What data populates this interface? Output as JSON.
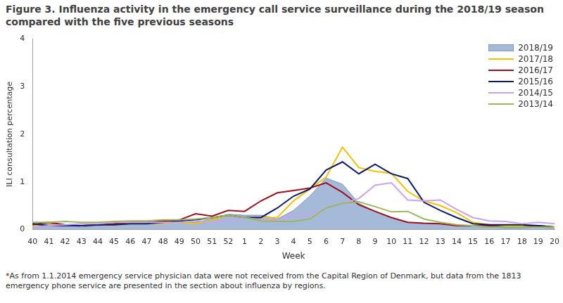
{
  "chart_data": {
    "type": "line",
    "title": "Figure 3. Influenza activity in the emergency call service surveillance during the 2018/19 season compared with the five previous seasons",
    "x_label": "Week",
    "y_label": "ILI consultation percentage",
    "annotations": [
      "*As from 1.1.2014 emergency service physician data were not received from the Capital Region of Denmark, but data from the 1813 emergency phone service are presented in the section about influenza by regions."
    ],
    "categories": [
      "40",
      "41",
      "42",
      "43",
      "44",
      "45",
      "46",
      "47",
      "48",
      "49",
      "50",
      "51",
      "52",
      "1",
      "2",
      "3",
      "4",
      "5",
      "6",
      "7",
      "8",
      "9",
      "10",
      "11",
      "12",
      "13",
      "14",
      "15",
      "16",
      "17",
      "18",
      "19",
      "20"
    ],
    "series": [
      {
        "name": "2018/19",
        "type": "area",
        "color": "#a5b9d9",
        "values": [
          0.15,
          0.12,
          0.1,
          0.05,
          0.08,
          0.1,
          0.12,
          0.13,
          0.15,
          0.15,
          0.15,
          0.22,
          0.32,
          0.3,
          0.3,
          0.22,
          0.4,
          0.7,
          1.08,
          0.95,
          0.55,
          0.38,
          0.25,
          0.15,
          0.12,
          0.12,
          0.08,
          0.05,
          0.05,
          0.03,
          0.03,
          0.05,
          0.02
        ]
      },
      {
        "name": "2017/18",
        "type": "line",
        "color": "#f5c200",
        "values": [
          0.08,
          0.1,
          0.08,
          0.08,
          0.1,
          0.1,
          0.12,
          0.12,
          0.13,
          0.15,
          0.12,
          0.2,
          0.3,
          0.25,
          0.25,
          0.25,
          0.6,
          0.85,
          1.1,
          1.73,
          1.3,
          1.22,
          1.18,
          0.8,
          0.6,
          0.5,
          0.35,
          0.15,
          0.1,
          0.08,
          0.08,
          0.08,
          0.05
        ]
      },
      {
        "name": "2016/17",
        "type": "line",
        "color": "#a00f1e",
        "values": [
          0.1,
          0.15,
          0.1,
          0.08,
          0.1,
          0.12,
          0.15,
          0.15,
          0.18,
          0.2,
          0.33,
          0.28,
          0.4,
          0.38,
          0.6,
          0.77,
          0.82,
          0.87,
          0.98,
          0.78,
          0.52,
          0.38,
          0.25,
          0.15,
          0.13,
          0.12,
          0.08,
          0.08,
          0.08,
          0.05,
          0.05,
          0.08,
          0.05
        ]
      },
      {
        "name": "2015/16",
        "type": "line",
        "color": "#0a1a6e",
        "values": [
          0.12,
          0.08,
          0.08,
          0.08,
          0.1,
          0.1,
          0.12,
          0.12,
          0.15,
          0.18,
          0.2,
          0.25,
          0.3,
          0.25,
          0.25,
          0.45,
          0.7,
          0.85,
          1.25,
          1.42,
          1.17,
          1.37,
          1.17,
          1.07,
          0.57,
          0.4,
          0.25,
          0.12,
          0.1,
          0.1,
          0.1,
          0.08,
          0.05
        ]
      },
      {
        "name": "2014/15",
        "type": "line",
        "color": "#c9a2f0",
        "values": [
          0.05,
          0.08,
          0.1,
          0.12,
          0.12,
          0.15,
          0.15,
          0.15,
          0.15,
          0.15,
          0.18,
          0.15,
          0.18,
          0.25,
          0.2,
          0.2,
          0.3,
          0.3,
          0.45,
          0.55,
          0.65,
          0.93,
          0.98,
          0.62,
          0.6,
          0.62,
          0.42,
          0.25,
          0.18,
          0.17,
          0.12,
          0.15,
          0.12
        ]
      },
      {
        "name": "2013/14",
        "type": "line",
        "color": "#9aba59",
        "values": [
          0.15,
          0.15,
          0.17,
          0.15,
          0.15,
          0.17,
          0.18,
          0.18,
          0.2,
          0.2,
          0.22,
          0.25,
          0.3,
          0.25,
          0.18,
          0.17,
          0.17,
          0.22,
          0.45,
          0.55,
          0.58,
          0.48,
          0.37,
          0.38,
          0.22,
          0.15,
          0.1,
          0.08,
          0.05,
          0.05,
          0.05,
          0.05,
          0.05
        ]
      }
    ],
    "ylim": [
      0,
      4
    ],
    "yticks": [
      0,
      1,
      2,
      3,
      4
    ],
    "grid": false,
    "legend": "upper right"
  }
}
